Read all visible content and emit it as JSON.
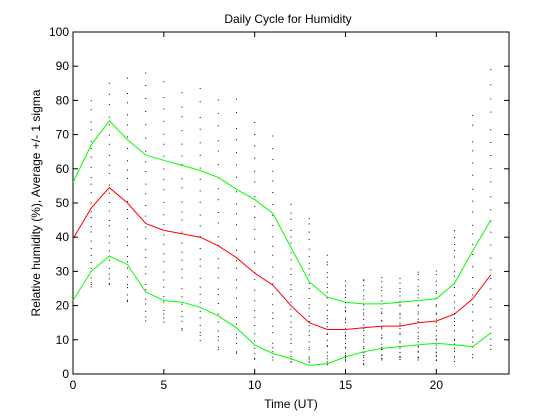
{
  "chart_data": {
    "type": "line",
    "title": "Daily Cycle for Humidity",
    "xlabel": "Time (UT)",
    "ylabel": "Relative humidity (%), Average +/- 1 sigma",
    "xlim": [
      0,
      24
    ],
    "ylim": [
      0,
      100
    ],
    "xticks": [
      0,
      5,
      10,
      15,
      20
    ],
    "yticks": [
      0,
      10,
      20,
      30,
      40,
      50,
      60,
      70,
      80,
      90,
      100
    ],
    "grid": false,
    "x": [
      0,
      1,
      2,
      3,
      4,
      5,
      6,
      7,
      8,
      9,
      10,
      11,
      12,
      13,
      14,
      15,
      16,
      17,
      18,
      19,
      20,
      21,
      22,
      23
    ],
    "series": [
      {
        "role": "average",
        "color": "#ff0000",
        "values": [
          39.5,
          48.5,
          54.5,
          50,
          44,
          42,
          41,
          40,
          37.5,
          34,
          29.5,
          26,
          20,
          15,
          13,
          13,
          13.5,
          14,
          14,
          15,
          15.5,
          17.5,
          22,
          29
        ]
      },
      {
        "role": "upper",
        "color": "#00ff00",
        "values": [
          56,
          67,
          74,
          68.5,
          64,
          62.5,
          61,
          59.5,
          57.5,
          54,
          51,
          47,
          37,
          27,
          22.5,
          21,
          20.5,
          20.5,
          21,
          21.5,
          22,
          26.5,
          36,
          45
        ]
      },
      {
        "role": "lower",
        "color": "#00ff00",
        "values": [
          21.5,
          30,
          34.5,
          32,
          24,
          21.5,
          21,
          19.5,
          17,
          13.5,
          8.5,
          6,
          4.5,
          2.5,
          3,
          5,
          6.5,
          7.5,
          8,
          8.5,
          9,
          8.5,
          8,
          12
        ]
      }
    ],
    "scatter": {
      "color": "#000000",
      "x": [
        0,
        1,
        2,
        3,
        4,
        5,
        6,
        7,
        8,
        9,
        10,
        11,
        12,
        13,
        14,
        15,
        16,
        17,
        18,
        19,
        20,
        21,
        22,
        23
      ],
      "y_range_min": [
        22,
        25,
        26,
        21,
        16,
        15,
        13,
        10,
        7,
        6,
        4,
        4,
        3,
        3,
        3,
        4,
        3,
        4,
        4,
        4,
        4,
        4,
        5,
        7
      ],
      "y_range_max": [
        60,
        80,
        85,
        86,
        88,
        85,
        82,
        83,
        80,
        80,
        74,
        70,
        50,
        46,
        35,
        27,
        28,
        28,
        28,
        30,
        30,
        42,
        76,
        89
      ],
      "points_per_column": 26
    }
  }
}
